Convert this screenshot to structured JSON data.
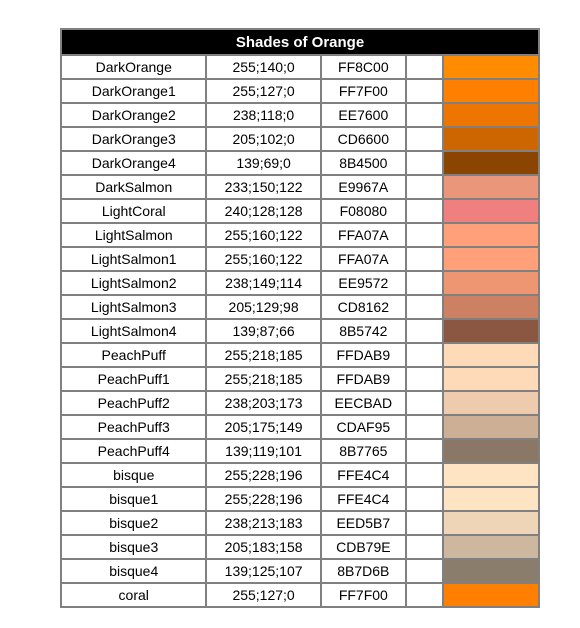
{
  "table": {
    "title": "Shades of Orange",
    "border_color": "#808080",
    "header_bg": "#000000",
    "header_fg": "#ffffff",
    "rows": [
      {
        "name": "DarkOrange",
        "rgb": "255;140;0",
        "hex": "FF8C00",
        "swatch": "#FF8C00"
      },
      {
        "name": "DarkOrange1",
        "rgb": "255;127;0",
        "hex": "FF7F00",
        "swatch": "#FF7F00"
      },
      {
        "name": "DarkOrange2",
        "rgb": "238;118;0",
        "hex": "EE7600",
        "swatch": "#EE7600"
      },
      {
        "name": "DarkOrange3",
        "rgb": "205;102;0",
        "hex": "CD6600",
        "swatch": "#CD6600"
      },
      {
        "name": "DarkOrange4",
        "rgb": "139;69;0",
        "hex": "8B4500",
        "swatch": "#8B4500"
      },
      {
        "name": "DarkSalmon",
        "rgb": "233;150;122",
        "hex": "E9967A",
        "swatch": "#E9967A"
      },
      {
        "name": "LightCoral",
        "rgb": "240;128;128",
        "hex": "F08080",
        "swatch": "#F08080"
      },
      {
        "name": "LightSalmon",
        "rgb": "255;160;122",
        "hex": "FFA07A",
        "swatch": "#FFA07A"
      },
      {
        "name": "LightSalmon1",
        "rgb": "255;160;122",
        "hex": "FFA07A",
        "swatch": "#FFA07A"
      },
      {
        "name": "LightSalmon2",
        "rgb": "238;149;114",
        "hex": "EE9572",
        "swatch": "#EE9572"
      },
      {
        "name": "LightSalmon3",
        "rgb": "205;129;98",
        "hex": "CD8162",
        "swatch": "#CD8162"
      },
      {
        "name": "LightSalmon4",
        "rgb": "139;87;66",
        "hex": "8B5742",
        "swatch": "#8B5742"
      },
      {
        "name": "PeachPuff",
        "rgb": "255;218;185",
        "hex": "FFDAB9",
        "swatch": "#FFDAB9"
      },
      {
        "name": "PeachPuff1",
        "rgb": "255;218;185",
        "hex": "FFDAB9",
        "swatch": "#FFDAB9"
      },
      {
        "name": "PeachPuff2",
        "rgb": "238;203;173",
        "hex": "EECBAD",
        "swatch": "#EECBAD"
      },
      {
        "name": "PeachPuff3",
        "rgb": "205;175;149",
        "hex": "CDAF95",
        "swatch": "#CDAF95"
      },
      {
        "name": "PeachPuff4",
        "rgb": "139;119;101",
        "hex": "8B7765",
        "swatch": "#8B7765"
      },
      {
        "name": "bisque",
        "rgb": "255;228;196",
        "hex": "FFE4C4",
        "swatch": "#FFE4C4"
      },
      {
        "name": "bisque1",
        "rgb": "255;228;196",
        "hex": "FFE4C4",
        "swatch": "#FFE4C4"
      },
      {
        "name": "bisque2",
        "rgb": "238;213;183",
        "hex": "EED5B7",
        "swatch": "#EED5B7"
      },
      {
        "name": "bisque3",
        "rgb": "205;183;158",
        "hex": "CDB79E",
        "swatch": "#CDB79E"
      },
      {
        "name": "bisque4",
        "rgb": "139;125;107",
        "hex": "8B7D6B",
        "swatch": "#8B7D6B"
      },
      {
        "name": "coral",
        "rgb": "255;127;0",
        "hex": "FF7F00",
        "swatch": "#FF7F00"
      }
    ]
  }
}
